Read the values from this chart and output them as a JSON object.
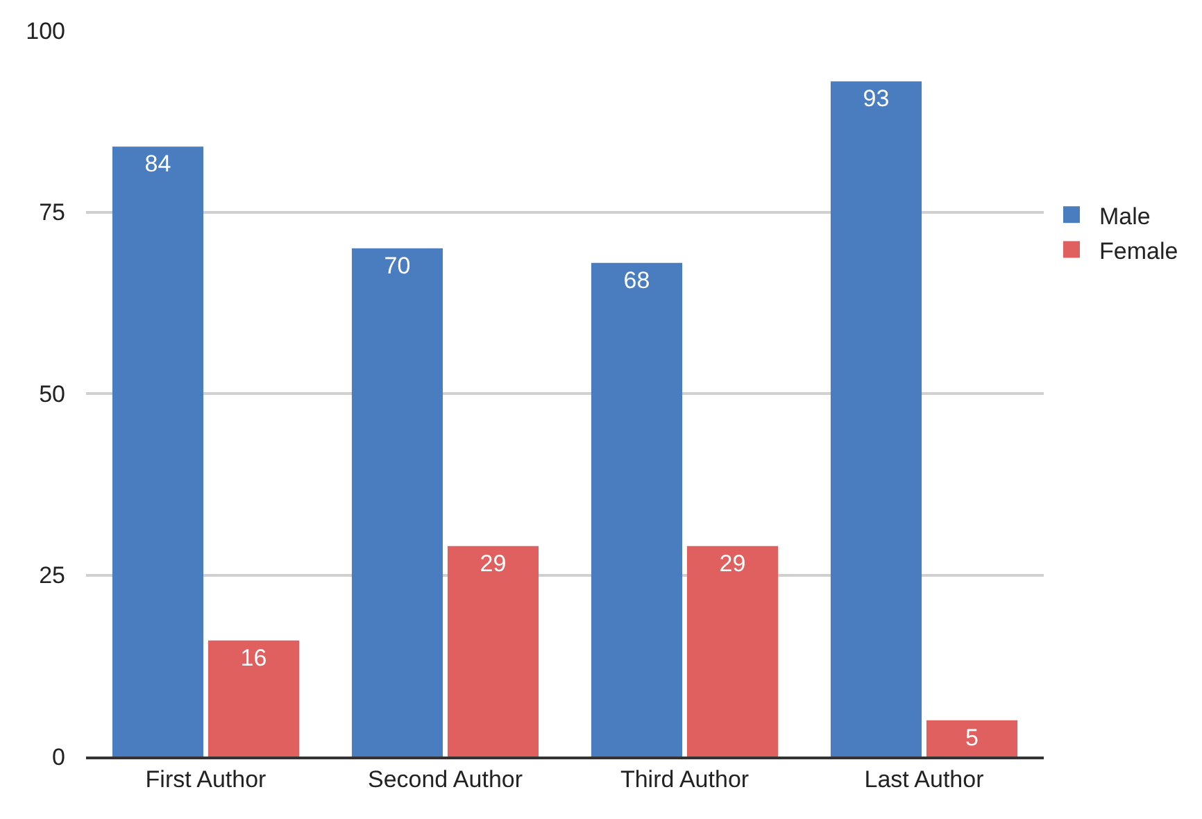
{
  "chart_data": {
    "type": "bar",
    "categories": [
      "First Author",
      "Second Author",
      "Third Author",
      "Last Author"
    ],
    "series": [
      {
        "name": "Male",
        "color": "#4a7cc0",
        "values": [
          84,
          70,
          68,
          93
        ]
      },
      {
        "name": "Female",
        "color": "#e06060",
        "values": [
          16,
          29,
          29,
          5
        ]
      }
    ],
    "ylim": [
      0,
      100
    ],
    "yticks": [
      0,
      25,
      50,
      75,
      100
    ],
    "grid": "y",
    "legend": "right",
    "data_labels": true
  }
}
